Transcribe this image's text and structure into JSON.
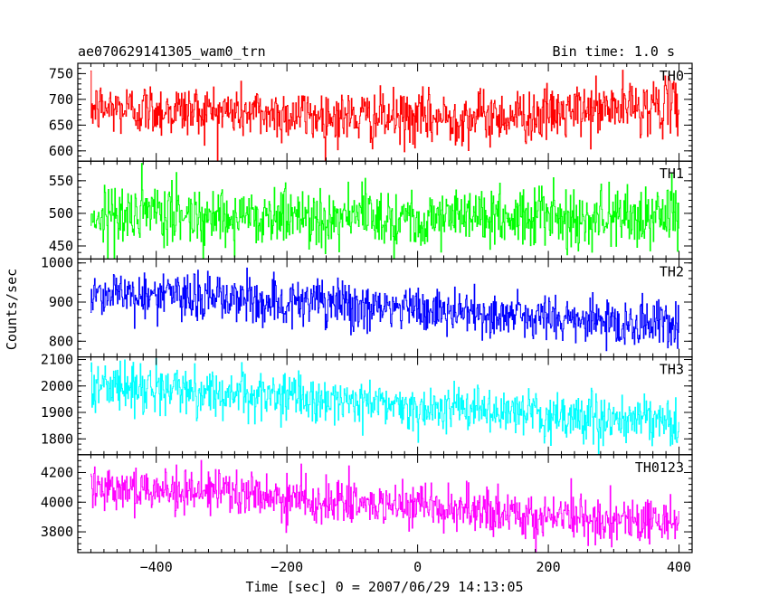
{
  "header": {
    "left_title": "ae070629141305_wam0_trn",
    "right_title": "Bin time: 1.0 s"
  },
  "ylabel": "Counts/sec",
  "xlabel": "Time [sec] 0 = 2007/06/29 14:13:05",
  "colors": {
    "TH0": "#ff0000",
    "TH1": "#00ff00",
    "TH2": "#0000ff",
    "TH3": "#00ffff",
    "TH0123": "#ff00ff",
    "axes": "#000000"
  },
  "chart_data": {
    "type": "line",
    "x_axis": {
      "range": [
        -520,
        420
      ],
      "ticks": [
        -400,
        -200,
        0,
        200,
        400
      ],
      "tick_labels": [
        "−400",
        "−200",
        "0",
        "200",
        "400"
      ]
    },
    "panels": [
      {
        "name": "TH0",
        "ylim": [
          580,
          770
        ],
        "yticks": [
          600,
          650,
          700,
          750
        ],
        "ytick_labels": [
          "600",
          "650",
          "700",
          "750"
        ],
        "x_range": [
          -500,
          400
        ],
        "trend": [
          [
            -500,
            683
          ],
          [
            -300,
            677
          ],
          [
            -100,
            665
          ],
          [
            0,
            662
          ],
          [
            100,
            667
          ],
          [
            200,
            670
          ],
          [
            300,
            683
          ],
          [
            400,
            690
          ]
        ],
        "noise": 26
      },
      {
        "name": "TH1",
        "ylim": [
          430,
          580
        ],
        "yticks": [
          450,
          500,
          550
        ],
        "ytick_labels": [
          "450",
          "500",
          "550"
        ],
        "x_range": [
          -500,
          400
        ],
        "trend": [
          [
            -500,
            497
          ],
          [
            -300,
            497
          ],
          [
            -100,
            495
          ],
          [
            100,
            494
          ],
          [
            400,
            495
          ]
        ],
        "noise": 23
      },
      {
        "name": "TH2",
        "ylim": [
          760,
          1010
        ],
        "yticks": [
          800,
          900,
          1000
        ],
        "ytick_labels": [
          "800",
          "900",
          "1000"
        ],
        "x_range": [
          -500,
          400
        ],
        "trend": [
          [
            -500,
            925
          ],
          [
            -300,
            910
          ],
          [
            -100,
            890
          ],
          [
            100,
            870
          ],
          [
            300,
            848
          ],
          [
            400,
            842
          ]
        ],
        "noise": 31
      },
      {
        "name": "TH3",
        "ylim": [
          1740,
          2110
        ],
        "yticks": [
          1800,
          1900,
          2000,
          2100
        ],
        "ytick_labels": [
          "1800",
          "1900",
          "2000",
          "2100"
        ],
        "x_range": [
          -500,
          400
        ],
        "trend": [
          [
            -500,
            2005
          ],
          [
            -300,
            1975
          ],
          [
            -100,
            1940
          ],
          [
            100,
            1905
          ],
          [
            300,
            1870
          ],
          [
            400,
            1860
          ]
        ],
        "noise": 44
      },
      {
        "name": "TH0123",
        "ylim": [
          3660,
          4320
        ],
        "yticks": [
          3800,
          4000,
          4200
        ],
        "ytick_labels": [
          "3800",
          "4000",
          "4200"
        ],
        "x_range": [
          -500,
          400
        ],
        "trend": [
          [
            -500,
            4120
          ],
          [
            -300,
            4060
          ],
          [
            -100,
            3990
          ],
          [
            100,
            3930
          ],
          [
            300,
            3880
          ],
          [
            400,
            3875
          ]
        ],
        "noise": 75
      }
    ]
  }
}
